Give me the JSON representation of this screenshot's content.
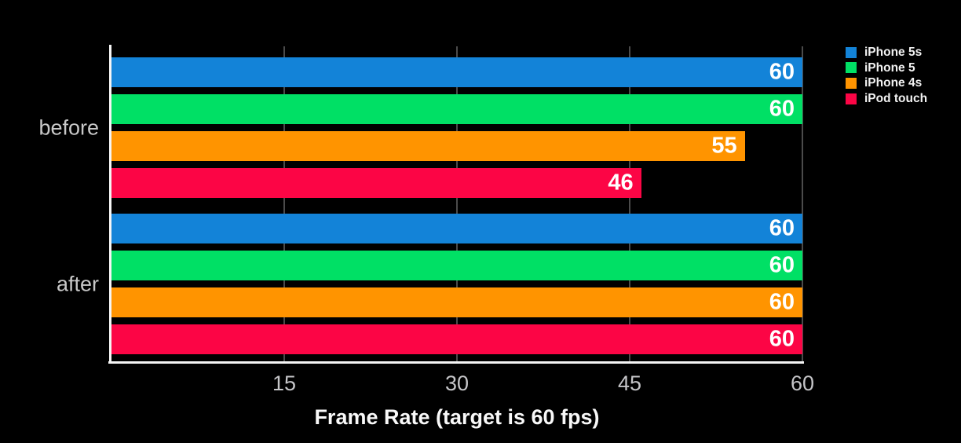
{
  "chart_data": {
    "type": "bar",
    "orientation": "horizontal",
    "title": "",
    "xlabel": "Frame Rate (target is 60 fps)",
    "ylabel": "",
    "categories": [
      "before",
      "after"
    ],
    "series": [
      {
        "name": "iPhone 5s",
        "color": "#1383d8",
        "values": [
          60,
          60
        ]
      },
      {
        "name": "iPhone 5",
        "color": "#00e065",
        "values": [
          60,
          60
        ]
      },
      {
        "name": "iPhone 4s",
        "color": "#ff9400",
        "values": [
          55,
          60
        ]
      },
      {
        "name": "iPod touch",
        "color": "#fc0545",
        "values": [
          46,
          60
        ]
      }
    ],
    "xlim": [
      0,
      60
    ],
    "xticks": [
      15,
      30,
      45,
      60
    ],
    "grid": true,
    "legend_position": "top-right",
    "colors": {
      "background": "#000000",
      "axis": "#f5f5f5",
      "gridline": "#4b4b4b",
      "bar_value_label": "#ffffff",
      "tick_label": "#c5c5c8",
      "category_label": "#c8c8c8",
      "axis_title": "#f8f8f8",
      "legend_label": "#f2f2f2"
    },
    "bar_value_labels": {
      "before": {
        "iPhone 5s": "60",
        "iPhone 5": "60",
        "iPhone 4s": "55",
        "iPod touch": "46"
      },
      "after": {
        "iPhone 5s": "60",
        "iPhone 5": "60",
        "iPhone 4s": "60",
        "iPod touch": "60"
      }
    }
  }
}
